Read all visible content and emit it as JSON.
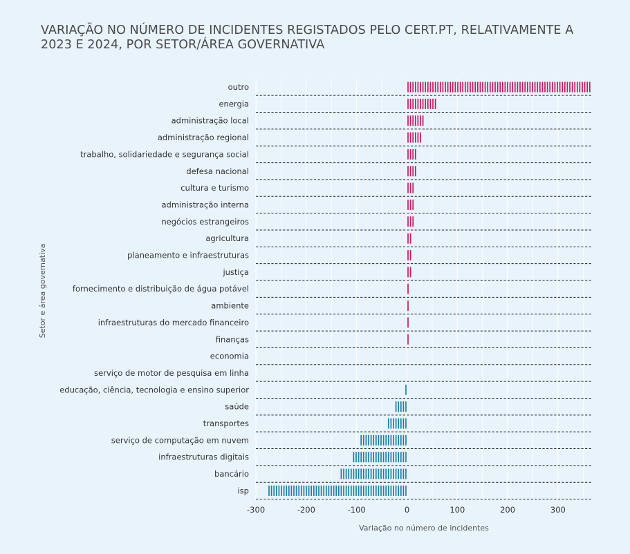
{
  "title_lines": [
    "VARIAÇÃO NO NÚMERO DE INCIDENTES REGISTADOS PELO CERT.PT, RELATIVAMENTE A",
    "2023 E 2024, POR SETOR/ÁREA GOVERNATIVA"
  ],
  "colors": {
    "positive": "#c8175d",
    "negative": "#1a7ea6",
    "grid": "#ffffff",
    "separator": "#222222",
    "background": "#e8f3fb"
  },
  "chart_data": {
    "type": "bar",
    "orientation": "horizontal",
    "xlabel": "Variação no número de incidentes",
    "ylabel": "Setor e área governativa",
    "xlim": [
      -300,
      365
    ],
    "xticks": [
      -300,
      -200,
      -100,
      0,
      100,
      200,
      300
    ],
    "xtick_labels": [
      "-300",
      "-200",
      "-100",
      "0",
      "100",
      "200",
      "300"
    ],
    "grid": true,
    "categories": [
      "outro",
      "energia",
      "administração local",
      "administração regional",
      "trabalho, solidariedade e segurança social",
      "defesa nacional",
      "cultura e turismo",
      "administração interna",
      "negócios estrangeiros",
      "agricultura",
      "planeamento e infraestruturas",
      "justiça",
      "fornecimento e distribuição de água potável",
      "ambiente",
      "infraestruturas do mercado financeiro",
      "finanças",
      "economia",
      "serviço de motor de pesquisa em linha",
      "educação, ciência, tecnologia e ensino superior",
      "saúde",
      "transportes",
      "serviço de computação em nuvem",
      "infraestruturas digitais",
      "bancário",
      "isp"
    ],
    "values": [
      366,
      60,
      33,
      28,
      18,
      18,
      14,
      14,
      14,
      9,
      9,
      9,
      3,
      3,
      3,
      3,
      -2,
      -2,
      -6,
      -26,
      -40,
      -95,
      -110,
      -135,
      -275
    ]
  }
}
